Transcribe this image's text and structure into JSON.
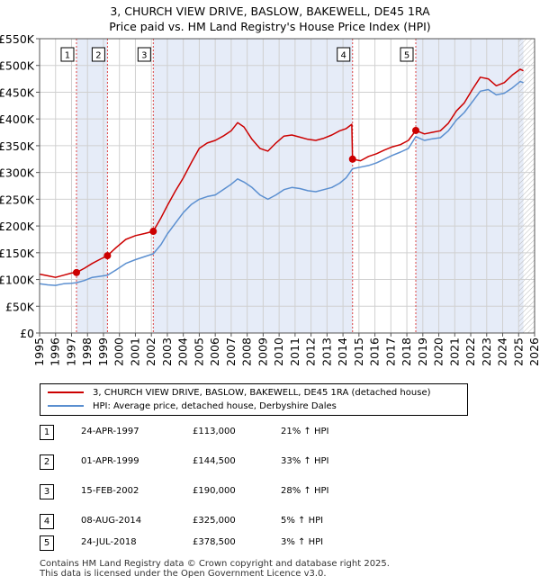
{
  "chart_data": {
    "type": "line",
    "title": "3, CHURCH VIEW DRIVE, BASLOW, BAKEWELL, DE45 1RA",
    "subtitle": "Price paid vs. HM Land Registry's House Price Index (HPI)",
    "xlim": [
      1995,
      2026
    ],
    "ylim": [
      0,
      550000
    ],
    "x_ticks": [
      "1995",
      "1996",
      "1997",
      "1998",
      "1999",
      "2000",
      "2001",
      "2002",
      "2003",
      "2004",
      "2005",
      "2006",
      "2007",
      "2008",
      "2009",
      "2010",
      "2011",
      "2012",
      "2013",
      "2014",
      "2015",
      "2016",
      "2017",
      "2018",
      "2019",
      "2020",
      "2021",
      "2022",
      "2023",
      "2024",
      "2025",
      "2026"
    ],
    "y_ticks": [
      {
        "value": 0,
        "label": "£0"
      },
      {
        "value": 50000,
        "label": "£50K"
      },
      {
        "value": 100000,
        "label": "£100K"
      },
      {
        "value": 150000,
        "label": "£150K"
      },
      {
        "value": 200000,
        "label": "£200K"
      },
      {
        "value": 250000,
        "label": "£250K"
      },
      {
        "value": 300000,
        "label": "£300K"
      },
      {
        "value": 350000,
        "label": "£350K"
      },
      {
        "value": 400000,
        "label": "£400K"
      },
      {
        "value": 450000,
        "label": "£450K"
      },
      {
        "value": 500000,
        "label": "£500K"
      },
      {
        "value": 550000,
        "label": "£550K"
      }
    ],
    "grid": true,
    "series": [
      {
        "name": "3, CHURCH VIEW DRIVE, BASLOW, BAKEWELL, DE45 1RA (detached house)",
        "color": "#cc0000",
        "points": [
          [
            1995.0,
            110000
          ],
          [
            1995.5,
            107000
          ],
          [
            1996.0,
            104000
          ],
          [
            1996.5,
            108000
          ],
          [
            1997.0,
            112000
          ],
          [
            1997.31,
            113000
          ],
          [
            1997.8,
            121000
          ],
          [
            1998.3,
            130000
          ],
          [
            1998.8,
            138000
          ],
          [
            1999.25,
            144500
          ],
          [
            1999.8,
            160000
          ],
          [
            2000.4,
            175000
          ],
          [
            2001.0,
            182000
          ],
          [
            2001.6,
            186000
          ],
          [
            2002.12,
            190000
          ],
          [
            2002.6,
            215000
          ],
          [
            2003.0,
            238000
          ],
          [
            2003.5,
            265000
          ],
          [
            2004.0,
            290000
          ],
          [
            2004.5,
            318000
          ],
          [
            2005.0,
            345000
          ],
          [
            2005.5,
            355000
          ],
          [
            2006.0,
            360000
          ],
          [
            2006.5,
            368000
          ],
          [
            2007.0,
            378000
          ],
          [
            2007.4,
            393000
          ],
          [
            2007.8,
            385000
          ],
          [
            2008.3,
            362000
          ],
          [
            2008.8,
            345000
          ],
          [
            2009.3,
            340000
          ],
          [
            2009.8,
            355000
          ],
          [
            2010.3,
            368000
          ],
          [
            2010.8,
            370000
          ],
          [
            2011.3,
            366000
          ],
          [
            2011.8,
            362000
          ],
          [
            2012.3,
            360000
          ],
          [
            2012.8,
            364000
          ],
          [
            2013.3,
            370000
          ],
          [
            2013.8,
            378000
          ],
          [
            2014.2,
            382000
          ],
          [
            2014.55,
            390000
          ],
          [
            2014.6,
            325000
          ],
          [
            2015.1,
            322000
          ],
          [
            2015.6,
            330000
          ],
          [
            2016.1,
            335000
          ],
          [
            2016.6,
            342000
          ],
          [
            2017.1,
            348000
          ],
          [
            2017.6,
            352000
          ],
          [
            2018.1,
            360000
          ],
          [
            2018.56,
            378500
          ],
          [
            2019.1,
            372000
          ],
          [
            2019.6,
            375000
          ],
          [
            2020.1,
            378000
          ],
          [
            2020.6,
            392000
          ],
          [
            2021.1,
            415000
          ],
          [
            2021.6,
            430000
          ],
          [
            2022.1,
            455000
          ],
          [
            2022.6,
            478000
          ],
          [
            2023.1,
            475000
          ],
          [
            2023.6,
            462000
          ],
          [
            2024.1,
            468000
          ],
          [
            2024.6,
            482000
          ],
          [
            2025.1,
            493000
          ],
          [
            2025.3,
            490000
          ]
        ]
      },
      {
        "name": "HPI: Average price, detached house, Derbyshire Dales",
        "color": "#5b8fd0",
        "points": [
          [
            1995.0,
            92000
          ],
          [
            1995.5,
            90000
          ],
          [
            1996.0,
            89000
          ],
          [
            1996.5,
            92000
          ],
          [
            1997.0,
            93000
          ],
          [
            1997.31,
            94000
          ],
          [
            1997.8,
            98000
          ],
          [
            1998.3,
            104000
          ],
          [
            1998.8,
            106000
          ],
          [
            1999.25,
            108000
          ],
          [
            1999.8,
            118000
          ],
          [
            2000.4,
            130000
          ],
          [
            2001.0,
            137000
          ],
          [
            2001.6,
            143000
          ],
          [
            2002.12,
            148000
          ],
          [
            2002.6,
            165000
          ],
          [
            2003.0,
            185000
          ],
          [
            2003.5,
            205000
          ],
          [
            2004.0,
            225000
          ],
          [
            2004.5,
            240000
          ],
          [
            2005.0,
            250000
          ],
          [
            2005.5,
            255000
          ],
          [
            2006.0,
            258000
          ],
          [
            2006.5,
            268000
          ],
          [
            2007.0,
            278000
          ],
          [
            2007.4,
            288000
          ],
          [
            2007.8,
            282000
          ],
          [
            2008.3,
            272000
          ],
          [
            2008.8,
            258000
          ],
          [
            2009.3,
            250000
          ],
          [
            2009.8,
            258000
          ],
          [
            2010.3,
            268000
          ],
          [
            2010.8,
            272000
          ],
          [
            2011.3,
            270000
          ],
          [
            2011.8,
            266000
          ],
          [
            2012.3,
            264000
          ],
          [
            2012.8,
            268000
          ],
          [
            2013.3,
            272000
          ],
          [
            2013.8,
            280000
          ],
          [
            2014.2,
            290000
          ],
          [
            2014.6,
            307000
          ],
          [
            2015.1,
            310000
          ],
          [
            2015.6,
            313000
          ],
          [
            2016.1,
            318000
          ],
          [
            2016.6,
            325000
          ],
          [
            2017.1,
            332000
          ],
          [
            2017.6,
            338000
          ],
          [
            2018.1,
            345000
          ],
          [
            2018.56,
            367000
          ],
          [
            2019.1,
            360000
          ],
          [
            2019.6,
            363000
          ],
          [
            2020.1,
            365000
          ],
          [
            2020.6,
            378000
          ],
          [
            2021.1,
            398000
          ],
          [
            2021.6,
            412000
          ],
          [
            2022.1,
            432000
          ],
          [
            2022.6,
            452000
          ],
          [
            2023.1,
            455000
          ],
          [
            2023.6,
            445000
          ],
          [
            2024.1,
            448000
          ],
          [
            2024.6,
            458000
          ],
          [
            2025.1,
            470000
          ],
          [
            2025.3,
            468000
          ]
        ]
      }
    ],
    "sales": [
      {
        "num": "1",
        "x": 1997.31,
        "price": 113000
      },
      {
        "num": "2",
        "x": 1999.25,
        "price": 144500
      },
      {
        "num": "3",
        "x": 2002.12,
        "price": 190000
      },
      {
        "num": "4",
        "x": 2014.6,
        "price": 325000
      },
      {
        "num": "5",
        "x": 2018.56,
        "price": 378500
      }
    ],
    "shaded_ranges": [
      [
        1997.31,
        1999.25
      ],
      [
        2002.12,
        2014.6
      ],
      [
        2018.56,
        2025.3
      ]
    ],
    "hatched_from": 2025.0
  },
  "legend": {
    "items": [
      {
        "label": "3, CHURCH VIEW DRIVE, BASLOW, BAKEWELL, DE45 1RA (detached house)",
        "color": "#cc0000"
      },
      {
        "label": "HPI: Average price, detached house, Derbyshire Dales",
        "color": "#5b8fd0"
      }
    ]
  },
  "sales_table": [
    {
      "num": "1",
      "date": "24-APR-1997",
      "price": "£113,000",
      "hpi": "21% ↑ HPI"
    },
    {
      "num": "2",
      "date": "01-APR-1999",
      "price": "£144,500",
      "hpi": "33% ↑ HPI"
    },
    {
      "num": "3",
      "date": "15-FEB-2002",
      "price": "£190,000",
      "hpi": "28% ↑ HPI"
    },
    {
      "num": "4",
      "date": "08-AUG-2014",
      "price": "£325,000",
      "hpi": "5% ↑ HPI"
    },
    {
      "num": "5",
      "date": "24-JUL-2018",
      "price": "£378,500",
      "hpi": "3% ↑ HPI"
    }
  ],
  "footer": {
    "line1": "Contains HM Land Registry data © Crown copyright and database right 2025.",
    "line2": "This data is licensed under the Open Government Licence v3.0."
  }
}
